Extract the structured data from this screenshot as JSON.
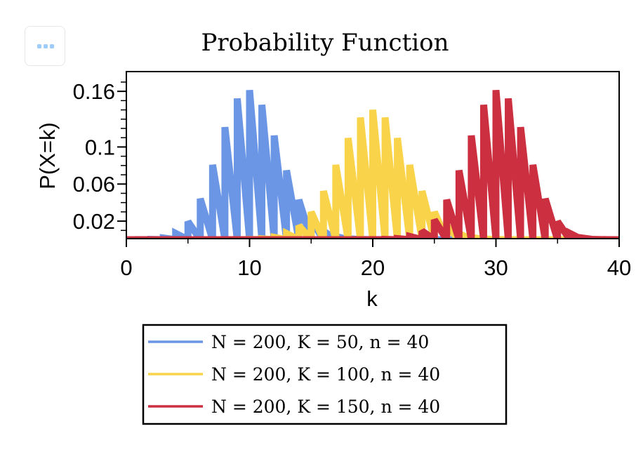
{
  "toolbar": {
    "menu_icon": "ellipsis-icon"
  },
  "chart_data": {
    "type": "line",
    "title": "Probability Function",
    "xlabel": "k",
    "ylabel": "P(X=k)",
    "xlim": [
      0,
      40
    ],
    "ylim": [
      0,
      0.175
    ],
    "x_ticks": [
      "0",
      "10",
      "20",
      "30",
      "40"
    ],
    "y_ticks": [
      "0.02",
      "0.06",
      "0.1",
      "0.16"
    ],
    "y_tick_values": [
      0.02,
      0.06,
      0.1,
      0.16
    ],
    "grid": false,
    "legend_placement": "bottom",
    "x": [
      0,
      1,
      2,
      3,
      4,
      5,
      6,
      7,
      8,
      9,
      10,
      11,
      12,
      13,
      14,
      15,
      16,
      17,
      18,
      19,
      20,
      21,
      22,
      23,
      24,
      25,
      26,
      27,
      28,
      29,
      30,
      31,
      32,
      33,
      34,
      35,
      36,
      37,
      38,
      39,
      40
    ],
    "series": [
      {
        "name": "N = 200, K = 50, n = 40",
        "color": "#6b96e5",
        "values": [
          2e-06,
          3.9e-05,
          0.00033,
          0.00178,
          0.00678,
          0.01954,
          0.0442,
          0.08076,
          0.12138,
          0.15234,
          0.16133,
          0.14545,
          0.11236,
          0.07476,
          0.04303,
          0.02147,
          0.00932,
          0.00352,
          0.00116,
          0.00033,
          8e-05,
          2e-05,
          0,
          0,
          0,
          0,
          0,
          0,
          0,
          0,
          0,
          0,
          0,
          0,
          0,
          0,
          0,
          0,
          0,
          0,
          0
        ]
      },
      {
        "name": "N = 200, K = 100, n = 40",
        "color": "#f9d44a",
        "values": [
          0,
          0,
          0,
          0,
          0,
          0,
          0,
          0,
          1e-05,
          6e-05,
          0.00025,
          0.00086,
          0.00256,
          0.00665,
          0.0151,
          0.03,
          0.0524,
          0.0807,
          0.1097,
          0.1318,
          0.1401,
          0.1318,
          0.1097,
          0.0807,
          0.0524,
          0.03,
          0.0151,
          0.00665,
          0.00256,
          0.00086,
          0.00025,
          6e-05,
          1e-05,
          0,
          0,
          0,
          0,
          0,
          0,
          0,
          0
        ]
      },
      {
        "name": "N = 200, K = 150, n = 40",
        "color": "#cc3040",
        "values": [
          0,
          0,
          0,
          0,
          0,
          0,
          0,
          0,
          0,
          0,
          0,
          0,
          0,
          0,
          0,
          0,
          0,
          0,
          0,
          2e-05,
          8e-05,
          0.00033,
          0.00116,
          0.00352,
          0.00932,
          0.02147,
          0.04303,
          0.07476,
          0.11236,
          0.14545,
          0.16133,
          0.15234,
          0.12138,
          0.08076,
          0.0442,
          0.01954,
          0.00678,
          0.00178,
          0.00033,
          3.9e-05,
          2e-06
        ]
      }
    ]
  }
}
